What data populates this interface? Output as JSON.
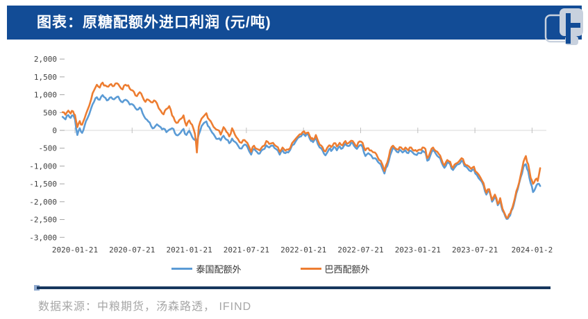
{
  "header": {
    "title": "图表：原糖配额外进口利润 (元/吨)",
    "logo_icon": "overlapping-rounded-squares-logo",
    "bar_color": "#124C96"
  },
  "footer": {
    "source": "数据来源：中粮期货，汤森路透， IFIND",
    "divider_color": "#17375E"
  },
  "chart_data": {
    "type": "line",
    "title": "原糖配额外进口利润 (元/吨)",
    "xlabel": "",
    "ylabel": "",
    "ylim": [
      -3000,
      2000
    ],
    "y_tick_step": 500,
    "y_ticks": [
      "2,000",
      "1,500",
      "1,000",
      "500",
      "0",
      "-500",
      "-1,000",
      "-1,500",
      "-2,000",
      "-2,500",
      "-3,000"
    ],
    "x_ticks": [
      "2020-01-21",
      "2020-07-21",
      "2021-01-21",
      "2021-07-21",
      "2022-01-21",
      "2022-07-21",
      "2023-01-21",
      "2023-07-21",
      "2024-01-2"
    ],
    "x_tick_interval": "6 months",
    "grid": "horizontal zero line only",
    "legend_position": "bottom",
    "x_unit": "months since 2020-01-21",
    "x": [
      -1.3,
      -1.0,
      -0.7,
      -0.45,
      -0.2,
      0,
      0.25,
      0.5,
      0.75,
      1.0,
      1.3,
      1.7,
      2.0,
      2.3,
      2.6,
      2.9,
      3.2,
      3.5,
      3.8,
      4.1,
      4.4,
      4.7,
      5.0,
      5.3,
      5.6,
      5.9,
      6.2,
      6.5,
      6.8,
      7.1,
      7.4,
      7.7,
      8.0,
      8.3,
      8.6,
      9.0,
      9.3,
      9.6,
      9.9,
      10.2,
      10.5,
      10.8,
      11.1,
      11.4,
      11.7,
      12.0,
      12.3,
      12.6,
      12.8,
      13.0,
      13.3,
      13.8,
      14.1,
      14.4,
      14.7,
      15.0,
      15.3,
      15.6,
      15.9,
      16.2,
      16.5,
      16.8,
      17.1,
      17.5,
      17.8,
      18.1,
      18.5,
      18.8,
      19.1,
      19.4,
      19.7,
      20.1,
      20.4,
      20.8,
      21.1,
      21.5,
      21.8,
      22.1,
      22.4,
      22.8,
      23.2,
      23.6,
      23.9,
      24.2,
      24.5,
      24.8,
      25.0,
      25.3,
      25.7,
      26.0,
      26.3,
      26.7,
      26.9,
      27.2,
      27.5,
      27.8,
      28.1,
      28.4,
      28.7,
      29.0,
      29.3,
      29.6,
      29.9,
      30.2,
      30.5,
      30.8,
      31.1,
      31.5,
      31.8,
      32.1,
      32.5,
      32.8,
      33.1,
      33.4,
      33.8,
      34.1,
      34.4,
      34.7,
      35.0,
      35.3,
      35.6,
      35.9,
      36.2,
      36.5,
      36.8,
      37.0,
      37.3,
      37.6,
      37.9,
      38.2,
      38.5,
      38.8,
      39.1,
      39.4,
      39.7,
      40.0,
      40.3,
      40.6,
      40.9,
      41.2,
      41.6,
      41.9,
      42.2,
      42.6,
      42.9,
      43.2,
      43.5,
      43.8,
      44.1,
      44.4,
      44.65,
      44.9,
      45.2,
      45.45,
      45.7,
      45.95,
      46.2,
      46.5,
      46.8,
      47.1,
      47.35,
      47.6,
      47.85,
      48.1,
      48.35,
      48.6,
      48.85
    ],
    "series": [
      {
        "name": "泰国配额外",
        "color": "#5B9BD5",
        "values": [
          380,
          310,
          430,
          350,
          420,
          310,
          -130,
          60,
          -70,
          120,
          330,
          620,
          800,
          930,
          860,
          990,
          910,
          855,
          930,
          870,
          940,
          860,
          790,
          860,
          800,
          740,
          690,
          580,
          640,
          480,
          330,
          250,
          120,
          70,
          170,
          90,
          50,
          -50,
          20,
          60,
          -80,
          -140,
          -60,
          40,
          -130,
          -10,
          -180,
          -270,
          -330,
          -120,
          120,
          250,
          90,
          -60,
          -170,
          -240,
          -280,
          -150,
          -260,
          -360,
          -230,
          -320,
          -420,
          -510,
          -400,
          -460,
          -680,
          -520,
          -600,
          -650,
          -540,
          -420,
          -480,
          -430,
          -520,
          -680,
          -560,
          -640,
          -620,
          -420,
          -300,
          -180,
          -100,
          -160,
          -120,
          -300,
          -330,
          -200,
          -480,
          -560,
          -700,
          -520,
          -580,
          -460,
          -560,
          -450,
          -500,
          -380,
          -440,
          -350,
          -430,
          -520,
          -420,
          -470,
          -720,
          -640,
          -700,
          -780,
          -880,
          -950,
          -1210,
          -1000,
          -700,
          -490,
          -600,
          -540,
          -620,
          -560,
          -640,
          -580,
          -660,
          -690,
          -640,
          -570,
          -620,
          -850,
          -720,
          -550,
          -660,
          -750,
          -900,
          -1050,
          -900,
          -950,
          -1110,
          -1000,
          -950,
          -850,
          -1000,
          -1050,
          -1150,
          -1100,
          -1250,
          -1400,
          -1550,
          -1800,
          -1700,
          -2000,
          -1850,
          -2100,
          -1950,
          -2250,
          -2420,
          -2480,
          -2380,
          -2200,
          -1950,
          -1650,
          -1320,
          -1020,
          -950,
          -1150,
          -1480,
          -1730,
          -1620,
          -1500,
          -1560
        ]
      },
      {
        "name": "巴西配额外",
        "color": "#ED7D31",
        "values": [
          510,
          440,
          555,
          470,
          530,
          430,
          90,
          260,
          160,
          330,
          560,
          870,
          1120,
          1280,
          1200,
          1340,
          1260,
          1225,
          1300,
          1245,
          1320,
          1230,
          1150,
          1280,
          1265,
          1130,
          1080,
          960,
          1070,
          940,
          800,
          860,
          790,
          840,
          760,
          550,
          450,
          600,
          680,
          420,
          260,
          215,
          320,
          420,
          130,
          280,
          160,
          -100,
          -620,
          100,
          330,
          480,
          300,
          180,
          60,
          10,
          -120,
          90,
          -40,
          -170,
          60,
          -120,
          -240,
          -350,
          -270,
          -350,
          -600,
          -430,
          -520,
          -560,
          -450,
          -300,
          -380,
          -350,
          -440,
          -600,
          -480,
          -570,
          -540,
          -360,
          -230,
          -110,
          -50,
          -90,
          -60,
          -240,
          -260,
          -130,
          -400,
          -470,
          -590,
          -420,
          -470,
          -360,
          -450,
          -350,
          -420,
          -300,
          -360,
          -290,
          -350,
          -450,
          -310,
          -350,
          -560,
          -500,
          -560,
          -620,
          -760,
          -850,
          -1140,
          -900,
          -560,
          -430,
          -530,
          -470,
          -530,
          -480,
          -560,
          -480,
          -570,
          -590,
          -540,
          -480,
          -520,
          -780,
          -620,
          -480,
          -580,
          -660,
          -820,
          -980,
          -830,
          -880,
          -1050,
          -930,
          -880,
          -780,
          -930,
          -980,
          -1080,
          -1020,
          -1180,
          -1330,
          -1480,
          -1750,
          -1650,
          -1950,
          -1800,
          -2060,
          -1900,
          -2200,
          -2380,
          -2450,
          -2330,
          -2150,
          -1900,
          -1600,
          -1260,
          -880,
          -720,
          -950,
          -1330,
          -1500,
          -1380,
          -1420,
          -1060
        ]
      }
    ]
  }
}
